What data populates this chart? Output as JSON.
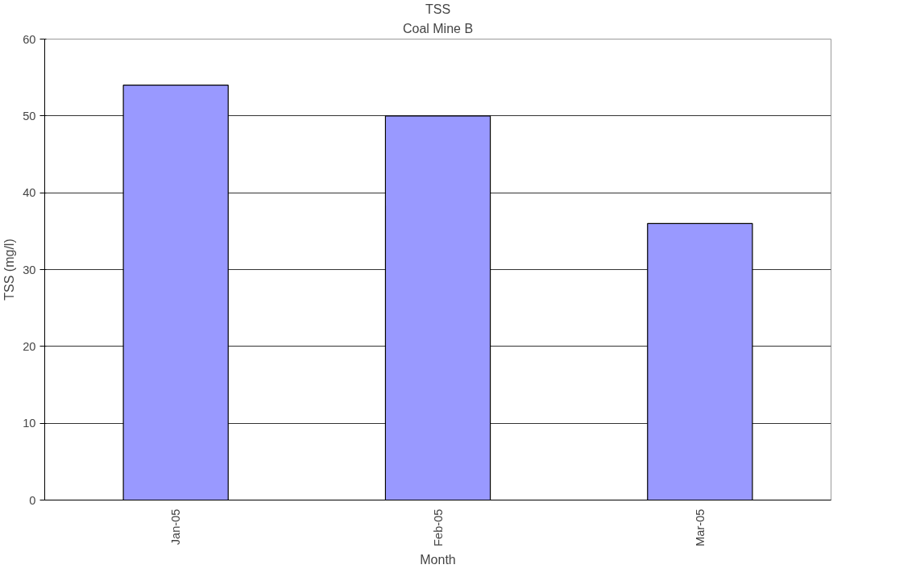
{
  "chart_data": {
    "type": "bar",
    "title": "TSS",
    "subtitle": "Coal Mine B",
    "xlabel": "Month",
    "ylabel": "TSS (mg/l)",
    "categories": [
      "Jan-05",
      "Feb-05",
      "Mar-05"
    ],
    "values": [
      54,
      50,
      36
    ],
    "color": "#9999ff",
    "ylim": [
      0,
      60
    ],
    "yticks": [
      0,
      10,
      20,
      30,
      40,
      50,
      60
    ],
    "grid": "y"
  }
}
